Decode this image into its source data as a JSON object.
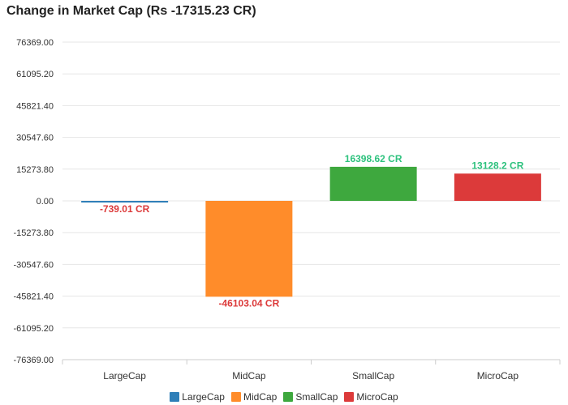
{
  "chart_data": {
    "type": "bar",
    "title": "Change in Market Cap (Rs -17315.23 CR)",
    "categories": [
      "LargeCap",
      "MidCap",
      "SmallCap",
      "MicroCap"
    ],
    "values": [
      -739.01,
      -46103.04,
      16398.62,
      13128.2
    ],
    "data_labels": [
      "-739.01 CR",
      "-46103.04 CR",
      "16398.62 CR",
      "13128.2 CR"
    ],
    "colors": [
      "#2f7fb8",
      "#ff8c2a",
      "#3ea83e",
      "#dc3a3a"
    ],
    "label_colors": [
      "#dc3a3a",
      "#dc3a3a",
      "#2ec27e",
      "#2ec27e"
    ],
    "yticks": [
      76369.0,
      61095.2,
      45821.4,
      30547.6,
      15273.8,
      0.0,
      -15273.8,
      -30547.6,
      -45821.4,
      -61095.2,
      -76369.0
    ],
    "ytick_labels": [
      "76369.00",
      "61095.20",
      "45821.40",
      "30547.60",
      "15273.80",
      "0.00",
      "-15273.80",
      "-30547.60",
      "-45821.40",
      "-61095.20",
      "-76369.00"
    ],
    "ylim": [
      -76369.0,
      76369.0
    ],
    "grid": true,
    "legend_position": "bottom",
    "legend": [
      "LargeCap",
      "MidCap",
      "SmallCap",
      "MicroCap"
    ]
  }
}
